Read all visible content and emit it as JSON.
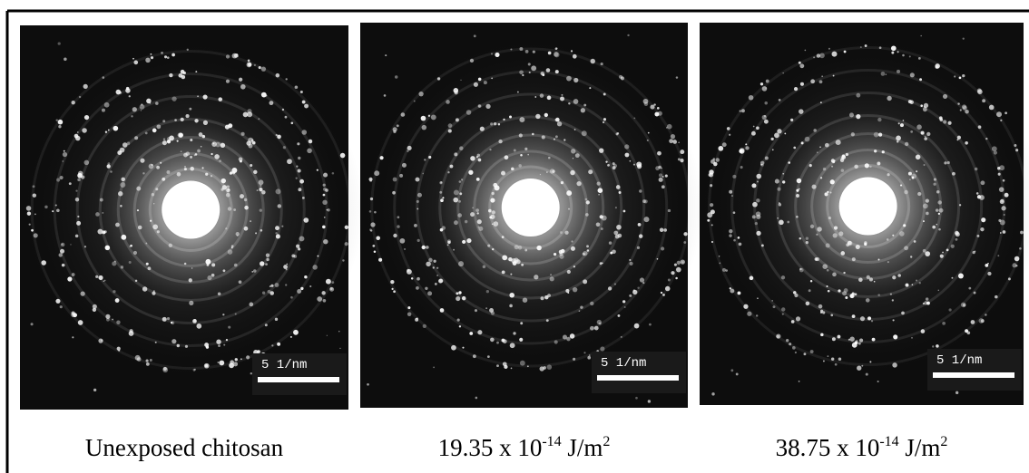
{
  "panels": [
    {
      "scale_label": "5 1/nm",
      "caption": {
        "text": "Unexposed chitosan"
      }
    },
    {
      "scale_label": "5 1/nm",
      "caption": {
        "base": "19.35 x 10",
        "exp": "-14",
        "unit": " J/m",
        "unit_exp": "2"
      }
    },
    {
      "scale_label": "5 1/nm",
      "caption": {
        "base": "38.75 x 10",
        "exp": "-14",
        "unit": " J/m",
        "unit_exp": "2"
      }
    }
  ]
}
